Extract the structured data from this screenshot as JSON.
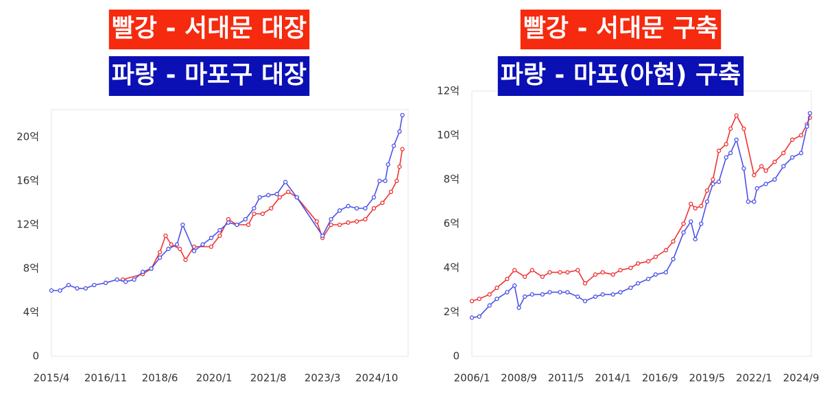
{
  "chart_data": [
    {
      "type": "line",
      "titles": [
        {
          "text": "빨강 - 서대문 대장",
          "color": "#f52a0e"
        },
        {
          "text": "파랑 - 마포구 대장",
          "color": "#0a10b4"
        }
      ],
      "xlim": [
        "2015/4",
        "2025/9"
      ],
      "xticks": [
        "2015/4",
        "2016/11",
        "2018/6",
        "2020/1",
        "2021/8",
        "2023/3",
        "2024/10"
      ],
      "ylim": [
        0,
        22.5
      ],
      "yticks": [
        0,
        {
          "value": 4,
          "label": "4억"
        },
        {
          "value": 8,
          "label": "8억"
        },
        {
          "value": 12,
          "label": "12억"
        },
        {
          "value": 16,
          "label": "16억"
        },
        {
          "value": 20,
          "label": "20억"
        }
      ],
      "series": [
        {
          "color": "#f03030",
          "x": [
            "2017/5",
            "2017/12",
            "2018/3",
            "2018/6",
            "2018/8",
            "2018/10",
            "2019/1",
            "2019/3",
            "2019/6",
            "2019/12",
            "2020/3",
            "2020/6",
            "2020/9",
            "2021/1",
            "2021/3",
            "2021/6",
            "2021/9",
            "2021/12",
            "2022/3",
            "2022/6",
            "2023/1",
            "2023/3",
            "2023/6",
            "2023/9",
            "2023/12",
            "2024/3",
            "2024/6",
            "2024/9",
            "2024/12",
            "2025/3",
            "2025/5",
            "2025/6",
            "2025/7"
          ],
          "values": [
            7.0,
            7.5,
            8.0,
            9.5,
            11.0,
            10.2,
            9.8,
            8.8,
            10.0,
            10.0,
            11.0,
            12.5,
            12.0,
            12.0,
            13.0,
            13.0,
            13.5,
            14.5,
            15.0,
            14.5,
            12.3,
            10.8,
            12.0,
            12.0,
            12.2,
            12.3,
            12.5,
            13.5,
            14.0,
            15.0,
            16.0,
            17.3,
            18.9
          ]
        },
        {
          "color": "#4a50e6",
          "x": [
            "2015/4",
            "2015/7",
            "2015/10",
            "2016/1",
            "2016/4",
            "2016/7",
            "2016/11",
            "2017/3",
            "2017/6",
            "2017/9",
            "2017/12",
            "2018/3",
            "2018/6",
            "2018/9",
            "2018/12",
            "2019/2",
            "2019/6",
            "2019/9",
            "2019/12",
            "2020/3",
            "2020/6",
            "2020/9",
            "2020/12",
            "2021/3",
            "2021/5",
            "2021/8",
            "2021/11",
            "2022/2",
            "2022/6",
            "2023/3",
            "2023/6",
            "2023/9",
            "2023/12",
            "2024/3",
            "2024/6",
            "2024/9",
            "2024/11",
            "2025/1",
            "2025/2",
            "2025/4",
            "2025/6",
            "2025/7"
          ],
          "values": [
            6.0,
            6.0,
            6.5,
            6.2,
            6.2,
            6.5,
            6.7,
            7.0,
            6.8,
            7.0,
            7.7,
            8.0,
            9.0,
            9.8,
            10.2,
            12.0,
            9.6,
            10.2,
            10.8,
            11.5,
            12.2,
            12.0,
            12.5,
            13.5,
            14.5,
            14.7,
            14.8,
            15.9,
            14.5,
            11.0,
            12.5,
            13.3,
            13.7,
            13.5,
            13.5,
            14.5,
            16.0,
            16.0,
            17.5,
            19.2,
            20.5,
            22.0
          ]
        }
      ]
    },
    {
      "type": "line",
      "titles": [
        {
          "text": "빨강 - 서대문 구축",
          "color": "#f52a0e"
        },
        {
          "text": "파랑 - 마포(아현) 구축",
          "color": "#0a10b4"
        }
      ],
      "xlim": [
        "2006/1",
        "2025/4"
      ],
      "xticks": [
        "2006/1",
        "2008/9",
        "2011/5",
        "2014/1",
        "2016/9",
        "2019/5",
        "2022/1",
        "2024/9"
      ],
      "ylim": [
        0,
        12
      ],
      "yticks": [
        0,
        {
          "value": 2,
          "label": "2억"
        },
        {
          "value": 4,
          "label": "4억"
        },
        {
          "value": 6,
          "label": "6억"
        },
        {
          "value": 8,
          "label": "8억"
        },
        {
          "value": 10,
          "label": "10억"
        },
        {
          "value": 12,
          "label": "12억"
        }
      ],
      "series": [
        {
          "color": "#f03030",
          "x": [
            "2006/1",
            "2006/6",
            "2007/1",
            "2007/6",
            "2008/1",
            "2008/6",
            "2009/1",
            "2009/6",
            "2010/1",
            "2010/6",
            "2011/1",
            "2011/6",
            "2012/1",
            "2012/6",
            "2013/1",
            "2013/6",
            "2014/1",
            "2014/6",
            "2015/1",
            "2015/6",
            "2016/1",
            "2016/6",
            "2017/1",
            "2017/6",
            "2018/1",
            "2018/6",
            "2018/9",
            "2019/1",
            "2019/5",
            "2019/9",
            "2020/1",
            "2020/6",
            "2020/9",
            "2021/1",
            "2021/6",
            "2022/1",
            "2022/6",
            "2022/9",
            "2023/3",
            "2023/9",
            "2024/3",
            "2024/9",
            "2025/1",
            "2025/3"
          ],
          "values": [
            2.5,
            2.6,
            2.8,
            3.1,
            3.5,
            3.9,
            3.6,
            3.9,
            3.6,
            3.8,
            3.8,
            3.8,
            3.9,
            3.3,
            3.7,
            3.8,
            3.7,
            3.9,
            4.0,
            4.2,
            4.3,
            4.5,
            4.8,
            5.2,
            6.0,
            6.9,
            6.7,
            6.8,
            7.5,
            8.0,
            9.3,
            9.6,
            10.3,
            10.9,
            10.3,
            8.2,
            8.6,
            8.4,
            8.8,
            9.2,
            9.8,
            10.0,
            10.5,
            10.8
          ]
        },
        {
          "color": "#4a50e6",
          "x": [
            "2006/1",
            "2006/6",
            "2007/1",
            "2007/6",
            "2008/1",
            "2008/6",
            "2008/9",
            "2009/1",
            "2009/6",
            "2010/1",
            "2010/6",
            "2011/1",
            "2011/6",
            "2012/1",
            "2012/6",
            "2013/1",
            "2013/6",
            "2014/1",
            "2014/6",
            "2015/1",
            "2015/6",
            "2016/1",
            "2016/6",
            "2017/1",
            "2017/6",
            "2018/1",
            "2018/6",
            "2018/9",
            "2019/1",
            "2019/5",
            "2019/9",
            "2020/1",
            "2020/6",
            "2020/9",
            "2021/1",
            "2021/6",
            "2021/9",
            "2022/1",
            "2022/3",
            "2022/9",
            "2023/3",
            "2023/9",
            "2024/3",
            "2024/9",
            "2025/1",
            "2025/3"
          ],
          "values": [
            1.75,
            1.8,
            2.3,
            2.6,
            2.9,
            3.2,
            2.2,
            2.7,
            2.8,
            2.8,
            2.9,
            2.9,
            2.9,
            2.7,
            2.5,
            2.7,
            2.8,
            2.8,
            2.9,
            3.1,
            3.3,
            3.5,
            3.7,
            3.8,
            4.4,
            5.6,
            6.1,
            5.3,
            6.0,
            7.0,
            7.8,
            7.9,
            9.0,
            9.2,
            9.8,
            8.5,
            7.0,
            7.0,
            7.6,
            7.8,
            8.0,
            8.6,
            9.0,
            9.2,
            10.4,
            11.0
          ]
        }
      ]
    }
  ]
}
